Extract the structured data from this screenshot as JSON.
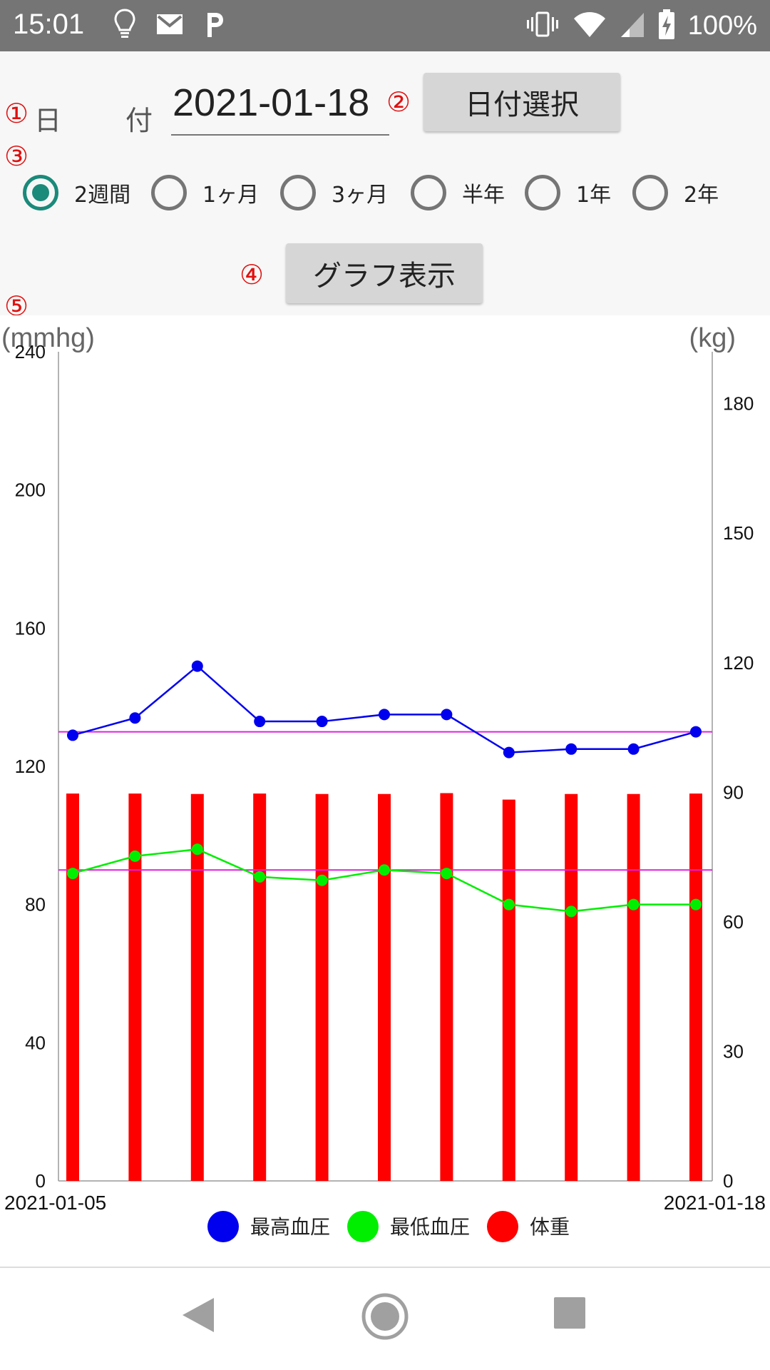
{
  "status_bar": {
    "time": "15:01",
    "battery": "100%",
    "icons": [
      "lightbulb-icon",
      "gmail-icon",
      "p-icon",
      "vibrate-icon",
      "wifi-icon",
      "signal-icon",
      "battery-charging-icon"
    ]
  },
  "markers": {
    "m1": "①",
    "m2": "②",
    "m3": "③",
    "m4": "④",
    "m5": "⑤"
  },
  "date_row": {
    "label_day": "日",
    "label_tsuki": "付",
    "date_value": "2021-01-18",
    "select_button": "日付選択"
  },
  "period_options": [
    {
      "label": "2週間",
      "checked": true
    },
    {
      "label": "1ヶ月",
      "checked": false
    },
    {
      "label": "3ヶ月",
      "checked": false
    },
    {
      "label": "半年",
      "checked": false
    },
    {
      "label": "1年",
      "checked": false
    },
    {
      "label": "2年",
      "checked": false
    }
  ],
  "graph_button": "グラフ表示",
  "colors": {
    "accent": "#1a8a7a",
    "systolic": "#0000ee",
    "diastolic": "#00ee00",
    "weight": "#ff0000",
    "reference": "#e020e0"
  },
  "chart_data": {
    "type": "bar+line",
    "left_unit": "(mmhg)",
    "right_unit": "(kg)",
    "left_ylim": [
      0,
      240
    ],
    "left_ticks": [
      "0",
      "40",
      "80",
      "120",
      "160",
      "200",
      "240"
    ],
    "right_ylim": [
      0,
      192
    ],
    "right_ticks": [
      "0",
      "30",
      "60",
      "90",
      "120",
      "150",
      "180"
    ],
    "x_start_label": "2021-01-05",
    "x_end_label": "2021-01-18",
    "reference_lines_left": [
      130,
      90
    ],
    "series": [
      {
        "name": "最高血圧",
        "type": "line",
        "axis": "left",
        "values": [
          129,
          134,
          149,
          133,
          133,
          135,
          135,
          124,
          125,
          125,
          130
        ]
      },
      {
        "name": "最低血圧",
        "type": "line",
        "axis": "left",
        "values": [
          89,
          94,
          96,
          88,
          87,
          90,
          89,
          80,
          78,
          80,
          80
        ]
      },
      {
        "name": "体重",
        "type": "bar",
        "axis": "right",
        "values": [
          89.7,
          89.7,
          89.6,
          89.7,
          89.6,
          89.6,
          89.8,
          88.3,
          89.6,
          89.6,
          89.7
        ]
      }
    ],
    "legend": [
      "最高血圧",
      "最低血圧",
      "体重"
    ]
  }
}
